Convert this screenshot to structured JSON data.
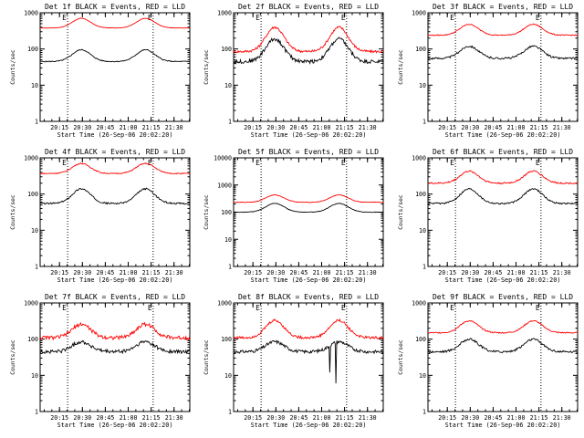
{
  "chart_data": {
    "type": "line",
    "layout": {
      "rows": 3,
      "cols": 3
    },
    "colors": {
      "events": "#000000",
      "lld": "#ff0000",
      "markers": "#000000",
      "background": "#ffffff"
    },
    "shared": {
      "xlabel": "Start Time (26-Sep-06 20:02:20)",
      "ylabel": "Counts/sec",
      "y_scale": "log",
      "xlim_min": [
        0,
        98
      ],
      "x_tick_values_min": [
        12.67,
        27.67,
        42.67,
        57.67,
        72.67,
        87.67
      ],
      "x_tick_labels": [
        "20:15",
        "20:30",
        "20:45",
        "21:00",
        "21:15",
        "21:30"
      ],
      "y_tick_values": [
        1,
        10,
        100,
        1000
      ],
      "y_tick_labels": [
        "1",
        "10",
        "100",
        "1000"
      ],
      "y_tick_labels_wide": [
        "1",
        "10",
        "100",
        "1000",
        "10000"
      ],
      "vlines_min": [
        18,
        74
      ],
      "marker_labels": [
        "E",
        "E"
      ],
      "series_names": [
        "Events",
        "LLD"
      ]
    },
    "panels": [
      {
        "det": "1f",
        "title": "Det 1f BLACK = Events, RED = LLD",
        "ylim": [
          1,
          1000
        ],
        "black": {
          "base": 45,
          "peak": 95,
          "noise": 0.03
        },
        "red": {
          "base": 380,
          "peak": 700,
          "noise": 0.01
        }
      },
      {
        "det": "2f",
        "title": "Det 2f BLACK = Events, RED = LLD",
        "ylim": [
          1,
          1000
        ],
        "black": {
          "base": 45,
          "peak": 190,
          "noise": 0.12
        },
        "red": {
          "base": 85,
          "peak": 400,
          "noise": 0.08
        }
      },
      {
        "det": "3f",
        "title": "Det 3f BLACK = Events, RED = LLD",
        "ylim": [
          1,
          1000
        ],
        "black": {
          "base": 55,
          "peak": 120,
          "noise": 0.06
        },
        "red": {
          "base": 240,
          "peak": 480,
          "noise": 0.03
        }
      },
      {
        "det": "4f",
        "title": "Det 4f BLACK = Events, RED = LLD",
        "ylim": [
          1,
          1000
        ],
        "black": {
          "base": 55,
          "peak": 140,
          "noise": 0.05
        },
        "red": {
          "base": 370,
          "peak": 700,
          "noise": 0.03
        }
      },
      {
        "det": "5f",
        "title": "Det 5f BLACK = Events, RED = LLD",
        "ylim": [
          1,
          10000
        ],
        "black": {
          "base": 100,
          "peak": 210,
          "noise": 0.02
        },
        "red": {
          "base": 230,
          "peak": 430,
          "noise": 0.02
        }
      },
      {
        "det": "6f",
        "title": "Det 6f BLACK = Events, RED = LLD",
        "ylim": [
          1,
          1000
        ],
        "black": {
          "base": 55,
          "peak": 140,
          "noise": 0.05
        },
        "red": {
          "base": 200,
          "peak": 430,
          "noise": 0.05
        }
      },
      {
        "det": "7f",
        "title": "Det 7f BLACK = Events, RED = LLD",
        "ylim": [
          1,
          1000
        ],
        "black": {
          "base": 45,
          "peak": 85,
          "noise": 0.12
        },
        "red": {
          "base": 110,
          "peak": 260,
          "noise": 0.12
        }
      },
      {
        "det": "8f",
        "title": "Det 8f BLACK = Events, RED = LLD",
        "ylim": [
          1,
          1000
        ],
        "black": {
          "base": 45,
          "peak": 85,
          "noise": 0.1
        },
        "red": {
          "base": 110,
          "peak": 330,
          "noise": 0.08
        },
        "dips": [
          {
            "x_min": 63,
            "value": 12
          },
          {
            "x_min": 67,
            "value": 6
          }
        ]
      },
      {
        "det": "9f",
        "title": "Det 9f BLACK = Events, RED = LLD",
        "ylim": [
          1,
          1000
        ],
        "black": {
          "base": 45,
          "peak": 100,
          "noise": 0.07
        },
        "red": {
          "base": 150,
          "peak": 320,
          "noise": 0.04
        }
      }
    ]
  }
}
